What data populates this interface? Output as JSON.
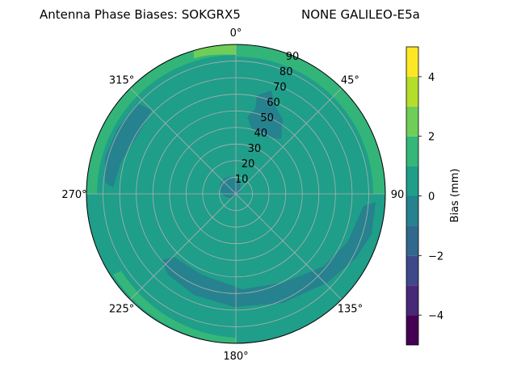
{
  "chart_data": {
    "type": "heatmap",
    "projection": "polar",
    "title_left": "Antenna Phase Biases: SOKGRX5",
    "title_right": "NONE GALILEO-E5a",
    "theta_direction": "clockwise",
    "theta_zero": "north",
    "theta_ticks": [
      "0°",
      "45°",
      "90",
      "135°",
      "180°",
      "225°",
      "270°",
      "315°"
    ],
    "r_ticks": [
      "10",
      "20",
      "30",
      "40",
      "50",
      "60",
      "70",
      "80",
      "90"
    ],
    "r_max": 90,
    "grid": true,
    "colorbar": {
      "label": "Bias (mm)",
      "ticks": [
        "−4",
        "−2",
        "0",
        "2",
        "4"
      ],
      "levels": [
        -5,
        -4.5,
        -4,
        -3.5,
        -3,
        -2.5,
        -2,
        -1.5,
        -1,
        -0.5,
        0,
        0.5,
        1,
        1.5,
        2,
        2.5,
        3,
        3.5,
        4,
        4.5,
        5
      ],
      "colors": [
        "#440154",
        "#482878",
        "#3e4989",
        "#31688e",
        "#26828e",
        "#1f9e89",
        "#35b779",
        "#6ece58",
        "#b5de2b",
        "#fde725"
      ],
      "band_bounds": [
        -5,
        -4,
        -3,
        -2,
        -1,
        0,
        1,
        2,
        3,
        4,
        5
      ]
    },
    "regions": [
      {
        "bias_mm": 0.5,
        "description_level": "background"
      },
      {
        "bias_mm": -0.5,
        "azimuth_deg": [
          10,
          35
        ],
        "elevation_zenith_deg": [
          50,
          80
        ]
      },
      {
        "bias_mm": -0.5,
        "azimuth_deg": [
          290,
          320
        ],
        "elevation_zenith_deg": [
          65,
          88
        ]
      },
      {
        "bias_mm": -0.5,
        "azimuth_deg": [
          120,
          215
        ],
        "elevation_zenith_deg": [
          70,
          88
        ]
      },
      {
        "bias_mm": -0.5,
        "azimuth_deg": [
          0,
          360
        ],
        "elevation_zenith_deg": [
          0,
          8
        ]
      },
      {
        "bias_mm": 1.5,
        "azimuth_deg": [
          300,
          60
        ],
        "elevation_zenith_deg": [
          85,
          90
        ]
      },
      {
        "bias_mm": 2.5,
        "azimuth_deg": [
          330,
          20
        ],
        "elevation_zenith_deg": [
          86,
          90
        ]
      }
    ]
  }
}
